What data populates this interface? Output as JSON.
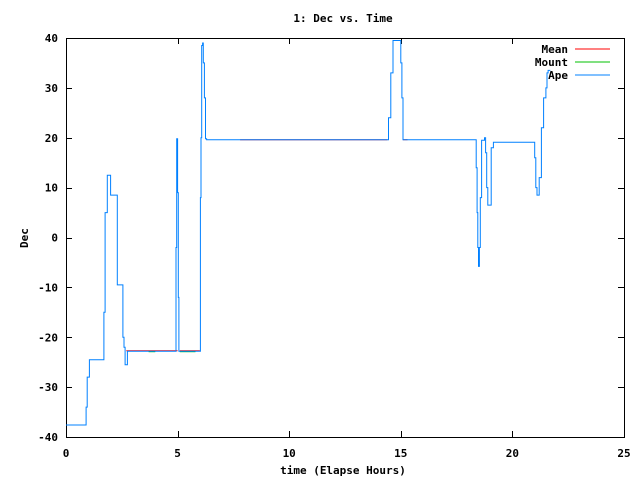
{
  "chart_data": {
    "type": "line",
    "title": "1: Dec vs. Time",
    "xlabel": "time (Elapse Hours)",
    "ylabel": "Dec",
    "xlim": [
      0,
      25
    ],
    "ylim": [
      -40,
      40
    ],
    "xticks": [
      0,
      5,
      10,
      15,
      20,
      25
    ],
    "yticks": [
      -40,
      -30,
      -20,
      -10,
      0,
      10,
      20,
      30,
      40
    ],
    "xtick_labels": [
      "0",
      "5",
      "10",
      "15",
      "20",
      "25"
    ],
    "ytick_labels": [
      "-40",
      "-30",
      "-20",
      "-10",
      "0",
      "10",
      "20",
      "30",
      "40"
    ],
    "grid": false,
    "legend_position": "top-right",
    "series": [
      {
        "name": "Mean",
        "color": "#ff0000",
        "segments": [
          {
            "x": [
              0,
              0.85
            ],
            "y": [
              -37.6,
              -37.6
            ]
          },
          {
            "x": [
              2.7,
              5.0
            ],
            "y": [
              -22.7,
              -22.7
            ]
          },
          {
            "x": [
              5.1,
              6.0
            ],
            "y": [
              -22.7,
              -22.7
            ]
          },
          {
            "x": [
              7.8,
              14.4
            ],
            "y": [
              19.6,
              19.6
            ]
          },
          {
            "x": [
              15.1,
              15.3
            ],
            "y": [
              19.6,
              19.6
            ]
          }
        ]
      },
      {
        "name": "Mount",
        "color": "#00c000",
        "segments": [
          {
            "x": [
              3.7,
              4.0
            ],
            "y": [
              -22.9,
              -22.9
            ]
          },
          {
            "x": [
              5.1,
              5.8
            ],
            "y": [
              -22.9,
              -22.9
            ]
          }
        ]
      },
      {
        "name": "Ape",
        "color": "#0080ff",
        "x": [
          0,
          0.85,
          0.9,
          0.95,
          1.05,
          1.6,
          1.7,
          1.75,
          1.85,
          1.9,
          2.0,
          2.15,
          2.3,
          2.35,
          2.4,
          2.45,
          2.55,
          2.6,
          2.65,
          2.75,
          3.0,
          4.9,
          4.93,
          4.96,
          5.0,
          5.03,
          5.06,
          5.1,
          6.0,
          6.02,
          6.05,
          6.08,
          6.12,
          6.15,
          6.2,
          6.25,
          6.3,
          7.8,
          14.3,
          14.45,
          14.55,
          14.65,
          14.75,
          14.85,
          14.95,
          15.0,
          15.05,
          15.1,
          15.2,
          18.35,
          18.38,
          18.42,
          18.45,
          18.48,
          18.52,
          18.56,
          18.62,
          18.75,
          18.8,
          18.85,
          18.9,
          18.95,
          19.05,
          19.15,
          19.2,
          20.9,
          21.0,
          21.05,
          21.1,
          21.15,
          21.2,
          21.3,
          21.4,
          21.5,
          21.55,
          21.6,
          21.7
        ],
        "y": [
          -37.6,
          -37.6,
          -34.0,
          -28.0,
          -24.5,
          -24.5,
          -15.0,
          5.0,
          12.5,
          12.5,
          8.5,
          8.5,
          -9.5,
          -9.5,
          -9.5,
          -9.5,
          -20.0,
          -22.0,
          -25.5,
          -22.8,
          -22.8,
          -22.8,
          -2.0,
          19.8,
          9.0,
          -12.0,
          -22.8,
          -22.8,
          -22.8,
          8.0,
          20.0,
          38.5,
          39.0,
          35.0,
          28.0,
          19.8,
          19.6,
          19.6,
          19.6,
          24.0,
          33.0,
          39.5,
          39.5,
          39.5,
          39.5,
          35.0,
          28.0,
          19.6,
          19.6,
          19.6,
          14.0,
          5.0,
          -2.0,
          -5.8,
          -2.0,
          8.0,
          19.5,
          20.0,
          17.0,
          10.0,
          6.5,
          6.5,
          18.0,
          19.1,
          19.1,
          19.1,
          16.0,
          10.0,
          8.5,
          8.5,
          12.0,
          22.0,
          28.0,
          30.0,
          33.0,
          33.5,
          33.5
        ]
      }
    ]
  }
}
